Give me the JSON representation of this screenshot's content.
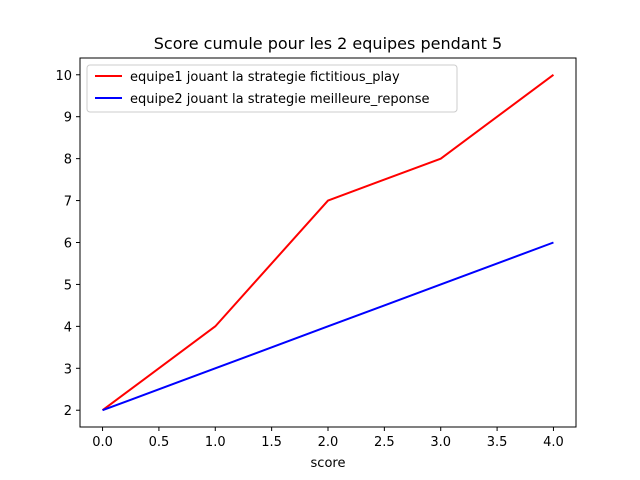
{
  "chart_data": {
    "type": "line",
    "title": "Score cumule pour les 2 equipes pendant 5",
    "xlabel": "score",
    "ylabel": "",
    "xlim": [
      -0.2,
      4.2
    ],
    "ylim": [
      1.6,
      10.4
    ],
    "x_ticks": [
      0.0,
      0.5,
      1.0,
      1.5,
      2.0,
      2.5,
      3.0,
      3.5,
      4.0
    ],
    "x_tick_labels": [
      "0.0",
      "0.5",
      "1.0",
      "1.5",
      "2.0",
      "2.5",
      "3.0",
      "3.5",
      "4.0"
    ],
    "y_ticks": [
      2,
      3,
      4,
      5,
      6,
      7,
      8,
      9,
      10
    ],
    "y_tick_labels": [
      "2",
      "3",
      "4",
      "5",
      "6",
      "7",
      "8",
      "9",
      "10"
    ],
    "grid": false,
    "legend_position": "top-left",
    "x": [
      0,
      1,
      2,
      3,
      4
    ],
    "series": [
      {
        "name": "equipe1 jouant la strategie fictitious_play",
        "color": "#ff0000",
        "values": [
          2,
          4,
          7,
          8,
          10
        ]
      },
      {
        "name": "equipe2 jouant la strategie meilleure_reponse",
        "color": "#0000ff",
        "values": [
          2,
          3,
          4,
          5,
          6
        ]
      }
    ]
  }
}
